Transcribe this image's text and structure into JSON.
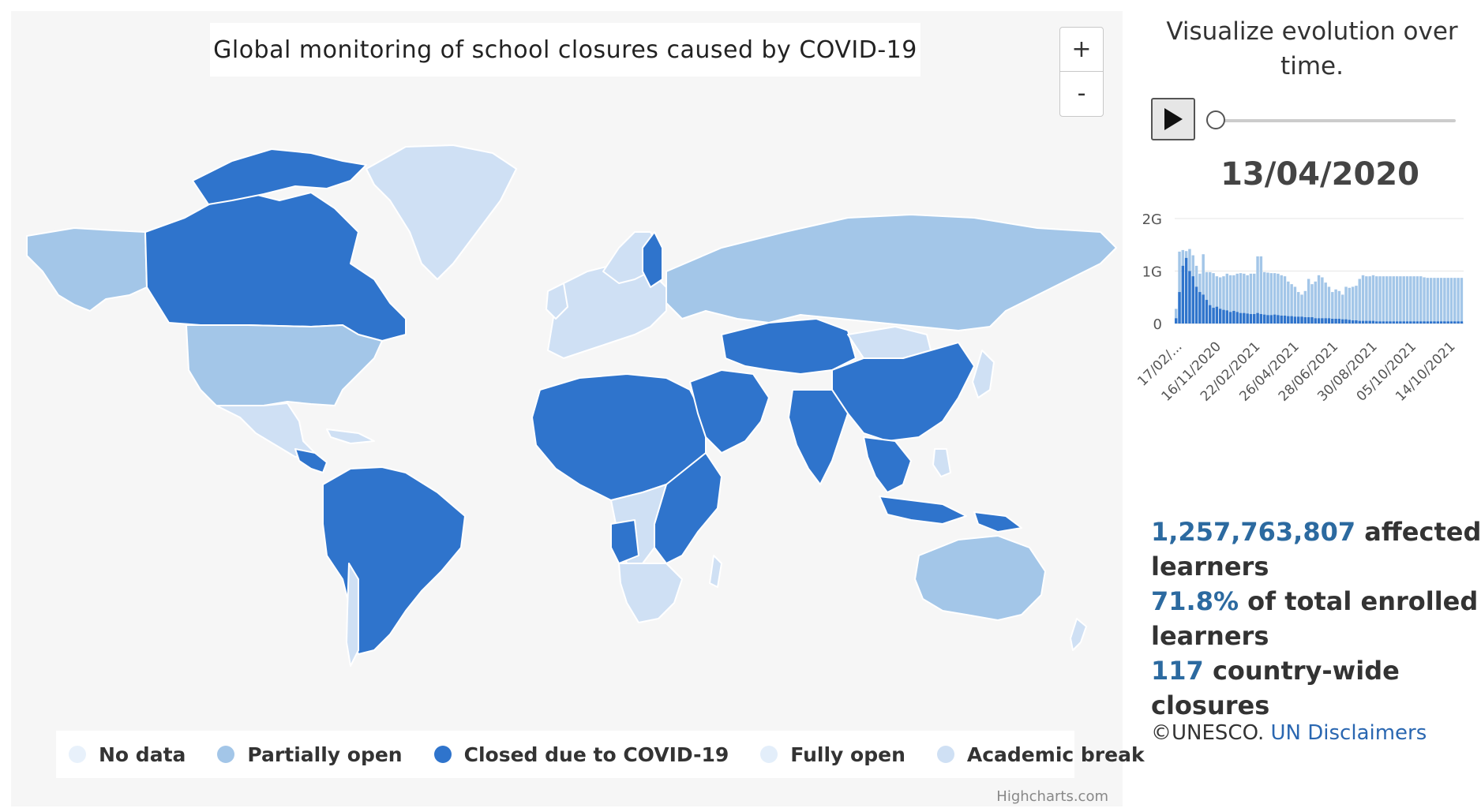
{
  "map": {
    "title": "Global monitoring of school closures caused by COVID-19",
    "zoom_in_label": "+",
    "zoom_out_label": "-",
    "credit": "Highcharts.com",
    "legend": [
      {
        "label": "No data",
        "color": "#e8f1fb"
      },
      {
        "label": "Partially open",
        "color": "#a3c6e8"
      },
      {
        "label": "Closed due to COVID-19",
        "color": "#2f74cc"
      },
      {
        "label": "Fully open",
        "color": "#e3eefa"
      },
      {
        "label": "Academic break",
        "color": "#cfe0f4"
      }
    ]
  },
  "sidebar": {
    "title": "Visualize evolution over time.",
    "play_icon": "play-icon",
    "date": "13/04/2020",
    "stats": {
      "affected_value": "1,257,763,807",
      "affected_label": " affected learners",
      "percent_value": "71.8%",
      "percent_label": " of total enrolled learners",
      "closures_value": "117",
      "closures_label": " country-wide closures"
    },
    "copyright": "©UNESCO.",
    "disclaimer_link": "UN Disclaimers"
  },
  "chart_data": {
    "type": "bar",
    "y_ticks": [
      "2G",
      "1G",
      "0"
    ],
    "ylim": [
      0,
      2
    ],
    "x_tick_labels": [
      "17/02/...",
      "16/11/2020",
      "22/02/2021",
      "26/04/2021",
      "28/06/2021",
      "30/08/2021",
      "05/10/2021",
      "14/10/2021"
    ],
    "series": [
      {
        "color": "#2f74cc",
        "values": [
          0.1,
          0.6,
          1.1,
          1.25,
          1.0,
          0.9,
          0.7,
          0.6,
          0.55,
          0.45,
          0.35,
          0.3,
          0.32,
          0.28,
          0.26,
          0.25,
          0.22,
          0.24,
          0.22,
          0.2,
          0.2,
          0.19,
          0.18,
          0.18,
          0.2,
          0.18,
          0.17,
          0.16,
          0.16,
          0.17,
          0.16,
          0.15,
          0.15,
          0.14,
          0.14,
          0.13,
          0.13,
          0.13,
          0.12,
          0.12,
          0.12,
          0.1,
          0.1,
          0.1,
          0.1,
          0.1,
          0.09,
          0.09,
          0.09,
          0.08,
          0.08,
          0.07,
          0.06,
          0.06,
          0.05,
          0.05,
          0.05,
          0.05,
          0.05,
          0.04,
          0.04,
          0.04,
          0.04,
          0.04,
          0.04,
          0.04,
          0.04,
          0.04,
          0.04,
          0.04,
          0.04,
          0.04,
          0.04,
          0.04,
          0.04,
          0.04,
          0.04,
          0.04,
          0.04,
          0.04,
          0.04,
          0.04,
          0.04,
          0.04,
          0.04
        ]
      },
      {
        "color": "#a3c6e8",
        "values": [
          0.28,
          1.37,
          1.4,
          1.38,
          1.42,
          1.3,
          1.1,
          0.95,
          1.32,
          0.98,
          0.98,
          0.96,
          0.9,
          0.88,
          0.9,
          0.95,
          0.92,
          0.92,
          0.95,
          0.96,
          0.95,
          0.92,
          0.95,
          0.95,
          1.28,
          1.28,
          0.98,
          0.97,
          0.96,
          0.96,
          0.95,
          0.92,
          0.9,
          0.8,
          0.75,
          0.7,
          0.6,
          0.55,
          0.62,
          0.85,
          0.75,
          0.8,
          0.92,
          0.88,
          0.78,
          0.7,
          0.6,
          0.65,
          0.62,
          0.55,
          0.7,
          0.68,
          0.7,
          0.72,
          0.85,
          0.92,
          0.9,
          0.9,
          0.92,
          0.9,
          0.9,
          0.9,
          0.9,
          0.9,
          0.9,
          0.9,
          0.9,
          0.9,
          0.9,
          0.9,
          0.9,
          0.9,
          0.9,
          0.88,
          0.87,
          0.87,
          0.87,
          0.87,
          0.87,
          0.87,
          0.87,
          0.87,
          0.87,
          0.87,
          0.87
        ]
      }
    ]
  }
}
